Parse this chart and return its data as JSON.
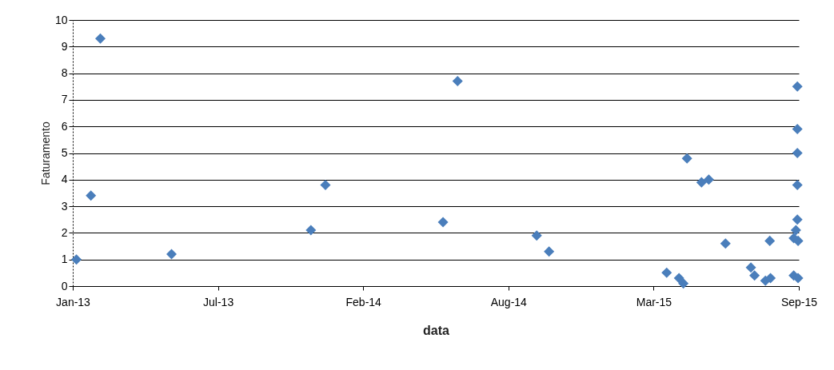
{
  "chart_data": {
    "type": "scatter",
    "xlabel": "data",
    "ylabel": "Faturamento",
    "x": [
      "2013-01-06",
      "2013-01-26",
      "2013-02-08",
      "2013-05-17",
      "2013-11-25",
      "2013-12-15",
      "2014-05-26",
      "2014-06-15",
      "2014-10-02",
      "2014-10-19",
      "2015-03-30",
      "2015-04-16",
      "2015-04-22",
      "2015-04-27",
      "2015-05-17",
      "2015-05-27",
      "2015-06-19",
      "2015-07-24",
      "2015-07-29",
      "2015-08-13",
      "2015-08-19",
      "2015-08-20",
      "2015-09-26",
      "2015-09-26",
      "2015-09-26",
      "2015-09-26",
      "2015-09-26",
      "2015-09-24",
      "2015-09-21",
      "2015-09-27",
      "2015-09-21",
      "2015-09-27"
    ],
    "series": [
      {
        "color": "#4a7ebb",
        "values": [
          1.0,
          3.4,
          9.3,
          1.2,
          2.1,
          3.8,
          2.4,
          7.7,
          1.9,
          1.3,
          0.5,
          0.3,
          0.1,
          4.8,
          3.9,
          4.0,
          1.6,
          0.7,
          0.4,
          0.2,
          1.7,
          0.3,
          7.5,
          5.9,
          5.0,
          3.8,
          2.5,
          2.1,
          1.8,
          1.7,
          0.4,
          0.3
        ]
      }
    ],
    "xlim": [
      "2013-01-01",
      "2015-09-28"
    ],
    "xticks": [
      {
        "value": "2013-01-01",
        "label": "Jan-13"
      },
      {
        "value": "2013-07-20",
        "label": "Jul-13"
      },
      {
        "value": "2014-02-05",
        "label": "Feb-14"
      },
      {
        "value": "2014-08-24",
        "label": "Aug-14"
      },
      {
        "value": "2015-03-12",
        "label": "Mar-15"
      },
      {
        "value": "2015-09-28",
        "label": "Sep-15"
      }
    ],
    "ylim": [
      0,
      10
    ],
    "yticks": [
      0,
      1,
      2,
      3,
      4,
      5,
      6,
      7,
      8,
      9,
      10
    ],
    "grid": "y",
    "marker": "diamond",
    "legend": false
  }
}
